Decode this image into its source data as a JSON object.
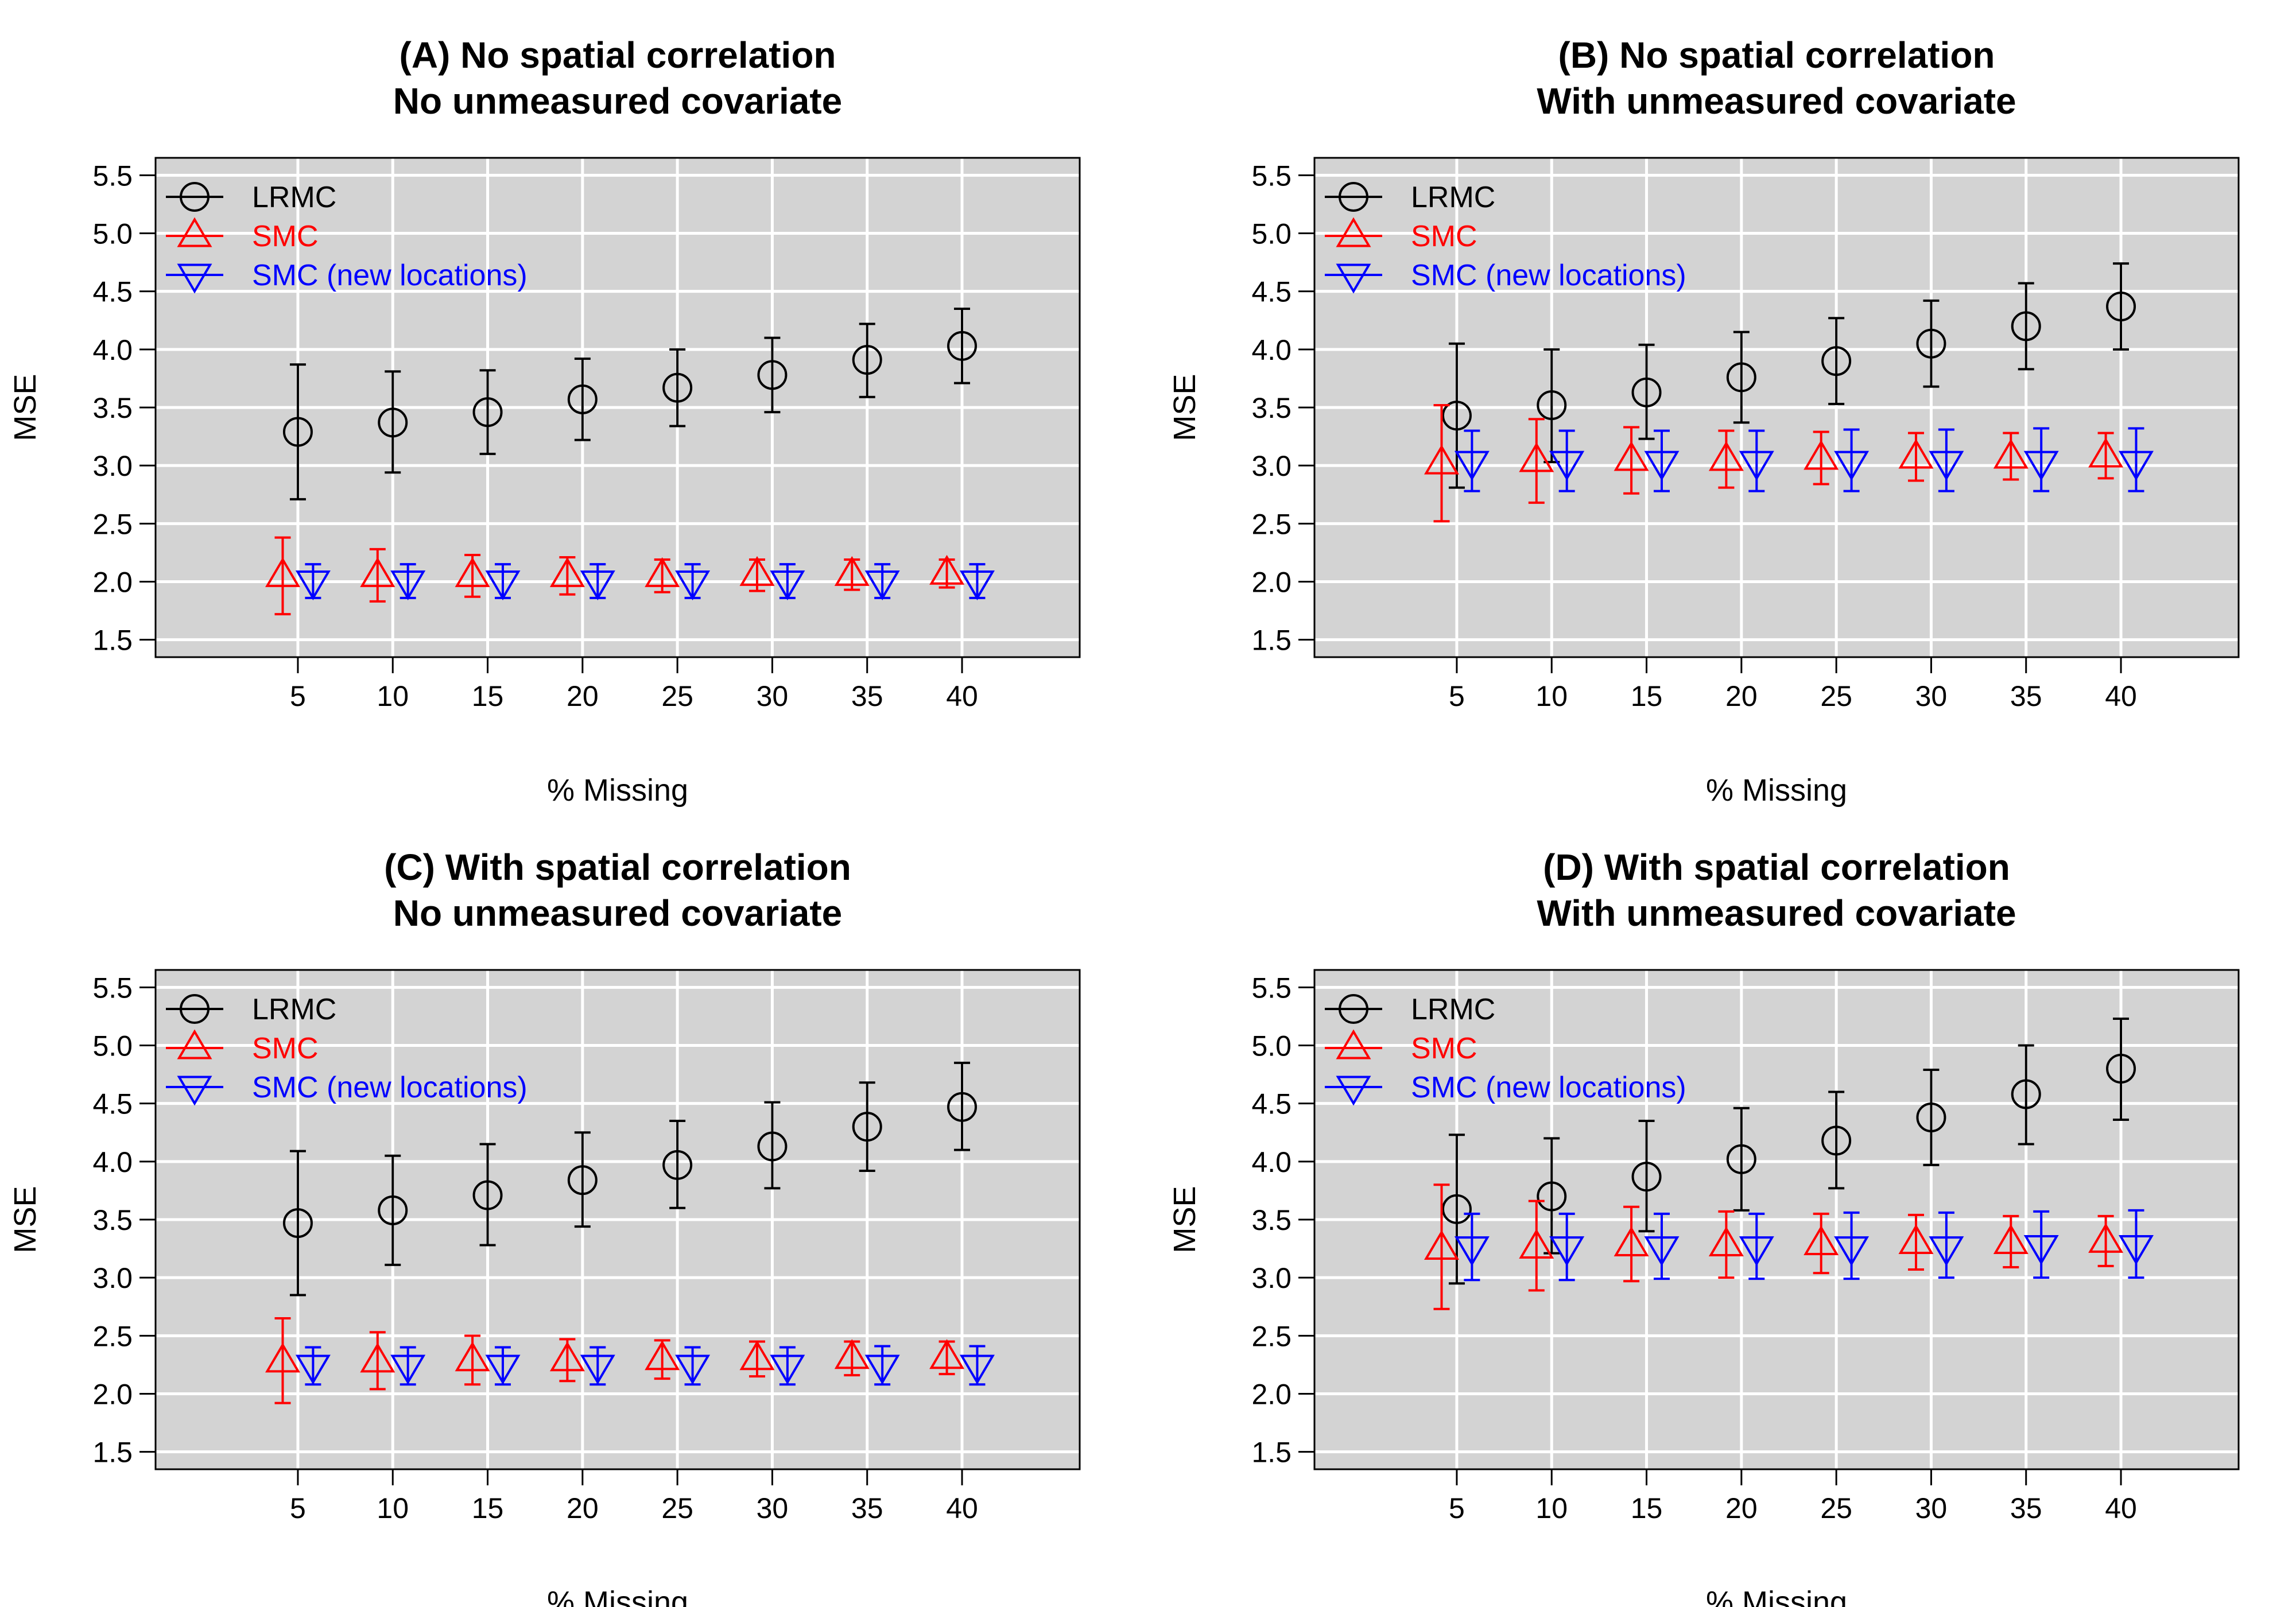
{
  "chart_data": [
    {
      "type": "scatter",
      "panel": "A",
      "title": "(A) No spatial correlation",
      "subtitle": "No unmeasured covariate",
      "xlabel": "% Missing",
      "ylabel": "MSE",
      "x": [
        5,
        10,
        15,
        20,
        25,
        30,
        35,
        40
      ],
      "ylim": [
        1.35,
        5.65
      ],
      "yticks": [
        "1.5",
        "2.0",
        "2.5",
        "3.0",
        "3.5",
        "4.0",
        "4.5",
        "5.0",
        "5.5"
      ],
      "xticks": [
        "5",
        "10",
        "15",
        "20",
        "25",
        "30",
        "35",
        "40"
      ],
      "legend_position": "top-left",
      "series": [
        {
          "name": "LRMC",
          "color": "#000000",
          "marker": "circle",
          "offset": 0,
          "values": [
            3.29,
            3.37,
            3.46,
            3.57,
            3.67,
            3.78,
            3.91,
            4.03
          ],
          "lower": [
            2.71,
            2.94,
            3.1,
            3.22,
            3.34,
            3.46,
            3.59,
            3.71
          ],
          "upper": [
            3.87,
            3.81,
            3.82,
            3.92,
            4.0,
            4.1,
            4.22,
            4.35
          ]
        },
        {
          "name": "SMC",
          "color": "#ff0000",
          "marker": "triangle-up",
          "offset": -0.8,
          "values": [
            2.05,
            2.05,
            2.05,
            2.05,
            2.05,
            2.06,
            2.06,
            2.07
          ],
          "lower": [
            1.72,
            1.83,
            1.87,
            1.89,
            1.91,
            1.92,
            1.93,
            1.95
          ],
          "upper": [
            2.38,
            2.28,
            2.23,
            2.21,
            2.19,
            2.19,
            2.19,
            2.19
          ]
        },
        {
          "name": "SMC (new locations)",
          "color": "#0000ff",
          "marker": "triangle-down",
          "offset": 0.8,
          "values": [
            2.0,
            2.0,
            2.0,
            2.0,
            2.0,
            2.0,
            2.0,
            2.0
          ],
          "lower": [
            1.86,
            1.86,
            1.86,
            1.86,
            1.86,
            1.86,
            1.86,
            1.86
          ],
          "upper": [
            2.15,
            2.15,
            2.15,
            2.15,
            2.15,
            2.15,
            2.15,
            2.15
          ]
        }
      ]
    },
    {
      "type": "scatter",
      "panel": "B",
      "title": "(B) No spatial correlation",
      "subtitle": "With unmeasured covariate",
      "xlabel": "% Missing",
      "ylabel": "MSE",
      "x": [
        5,
        10,
        15,
        20,
        25,
        30,
        35,
        40
      ],
      "ylim": [
        1.35,
        5.65
      ],
      "yticks": [
        "1.5",
        "2.0",
        "2.5",
        "3.0",
        "3.5",
        "4.0",
        "4.5",
        "5.0",
        "5.5"
      ],
      "xticks": [
        "5",
        "10",
        "15",
        "20",
        "25",
        "30",
        "35",
        "40"
      ],
      "legend_position": "top-left",
      "series": [
        {
          "name": "LRMC",
          "color": "#000000",
          "marker": "circle",
          "offset": 0,
          "values": [
            3.43,
            3.52,
            3.63,
            3.76,
            3.9,
            4.05,
            4.2,
            4.37
          ],
          "lower": [
            2.81,
            3.03,
            3.23,
            3.37,
            3.53,
            3.68,
            3.83,
            4.0
          ],
          "upper": [
            4.05,
            4.0,
            4.04,
            4.15,
            4.27,
            4.42,
            4.57,
            4.74
          ]
        },
        {
          "name": "SMC",
          "color": "#ff0000",
          "marker": "triangle-up",
          "offset": -0.8,
          "values": [
            3.02,
            3.04,
            3.05,
            3.05,
            3.06,
            3.07,
            3.07,
            3.08
          ],
          "lower": [
            2.52,
            2.68,
            2.76,
            2.81,
            2.84,
            2.87,
            2.88,
            2.89
          ],
          "upper": [
            3.52,
            3.4,
            3.33,
            3.3,
            3.29,
            3.28,
            3.28,
            3.28
          ]
        },
        {
          "name": "SMC (new locations)",
          "color": "#0000ff",
          "marker": "triangle-down",
          "offset": 0.8,
          "values": [
            3.03,
            3.03,
            3.03,
            3.03,
            3.03,
            3.03,
            3.03,
            3.03
          ],
          "lower": [
            2.78,
            2.78,
            2.78,
            2.78,
            2.78,
            2.78,
            2.78,
            2.78
          ],
          "upper": [
            3.3,
            3.3,
            3.3,
            3.3,
            3.31,
            3.31,
            3.32,
            3.32
          ]
        }
      ]
    },
    {
      "type": "scatter",
      "panel": "C",
      "title": "(C) With spatial correlation",
      "subtitle": "No unmeasured covariate",
      "xlabel": "% Missing",
      "ylabel": "MSE",
      "x": [
        5,
        10,
        15,
        20,
        25,
        30,
        35,
        40
      ],
      "ylim": [
        1.35,
        5.65
      ],
      "yticks": [
        "1.5",
        "2.0",
        "2.5",
        "3.0",
        "3.5",
        "4.0",
        "4.5",
        "5.0",
        "5.5"
      ],
      "xticks": [
        "5",
        "10",
        "15",
        "20",
        "25",
        "30",
        "35",
        "40"
      ],
      "legend_position": "top-left",
      "series": [
        {
          "name": "LRMC",
          "color": "#000000",
          "marker": "circle",
          "offset": 0,
          "values": [
            3.47,
            3.58,
            3.71,
            3.84,
            3.97,
            4.13,
            4.3,
            4.47
          ],
          "lower": [
            2.85,
            3.11,
            3.28,
            3.44,
            3.6,
            3.77,
            3.92,
            4.1
          ],
          "upper": [
            4.09,
            4.05,
            4.15,
            4.25,
            4.35,
            4.51,
            4.68,
            4.85
          ]
        },
        {
          "name": "SMC",
          "color": "#ff0000",
          "marker": "triangle-up",
          "offset": -0.8,
          "values": [
            2.28,
            2.28,
            2.29,
            2.29,
            2.3,
            2.3,
            2.31,
            2.31
          ],
          "lower": [
            1.92,
            2.04,
            2.08,
            2.11,
            2.13,
            2.15,
            2.16,
            2.17
          ],
          "upper": [
            2.65,
            2.53,
            2.5,
            2.47,
            2.46,
            2.45,
            2.45,
            2.45
          ]
        },
        {
          "name": "SMC (new locations)",
          "color": "#0000ff",
          "marker": "triangle-down",
          "offset": 0.8,
          "values": [
            2.24,
            2.24,
            2.24,
            2.24,
            2.24,
            2.24,
            2.24,
            2.24
          ],
          "lower": [
            2.08,
            2.08,
            2.08,
            2.08,
            2.08,
            2.08,
            2.08,
            2.08
          ],
          "upper": [
            2.4,
            2.4,
            2.4,
            2.4,
            2.4,
            2.4,
            2.41,
            2.41
          ]
        }
      ]
    },
    {
      "type": "scatter",
      "panel": "D",
      "title": "(D) With spatial correlation",
      "subtitle": "With unmeasured covariate",
      "xlabel": "% Missing",
      "ylabel": "MSE",
      "x": [
        5,
        10,
        15,
        20,
        25,
        30,
        35,
        40
      ],
      "ylim": [
        1.35,
        5.65
      ],
      "yticks": [
        "1.5",
        "2.0",
        "2.5",
        "3.0",
        "3.5",
        "4.0",
        "4.5",
        "5.0",
        "5.5"
      ],
      "xticks": [
        "5",
        "10",
        "15",
        "20",
        "25",
        "30",
        "35",
        "40"
      ],
      "legend_position": "top-left",
      "series": [
        {
          "name": "LRMC",
          "color": "#000000",
          "marker": "circle",
          "offset": 0,
          "values": [
            3.59,
            3.7,
            3.87,
            4.02,
            4.18,
            4.38,
            4.58,
            4.8
          ],
          "lower": [
            2.95,
            3.21,
            3.4,
            3.58,
            3.77,
            3.97,
            4.15,
            4.36
          ],
          "upper": [
            4.23,
            4.2,
            4.35,
            4.46,
            4.6,
            4.79,
            5.0,
            5.23
          ]
        },
        {
          "name": "SMC",
          "color": "#ff0000",
          "marker": "triangle-up",
          "offset": -0.8,
          "values": [
            3.25,
            3.26,
            3.28,
            3.28,
            3.29,
            3.3,
            3.3,
            3.31
          ],
          "lower": [
            2.73,
            2.89,
            2.97,
            3.0,
            3.04,
            3.07,
            3.09,
            3.1
          ],
          "upper": [
            3.8,
            3.66,
            3.61,
            3.57,
            3.55,
            3.54,
            3.53,
            3.53
          ]
        },
        {
          "name": "SMC (new locations)",
          "color": "#0000ff",
          "marker": "triangle-down",
          "offset": 0.8,
          "values": [
            3.26,
            3.26,
            3.26,
            3.26,
            3.26,
            3.26,
            3.27,
            3.27
          ],
          "lower": [
            2.98,
            2.98,
            2.99,
            2.99,
            2.99,
            3.0,
            3.0,
            3.0
          ],
          "upper": [
            3.55,
            3.55,
            3.55,
            3.55,
            3.56,
            3.56,
            3.57,
            3.58
          ]
        }
      ]
    }
  ]
}
